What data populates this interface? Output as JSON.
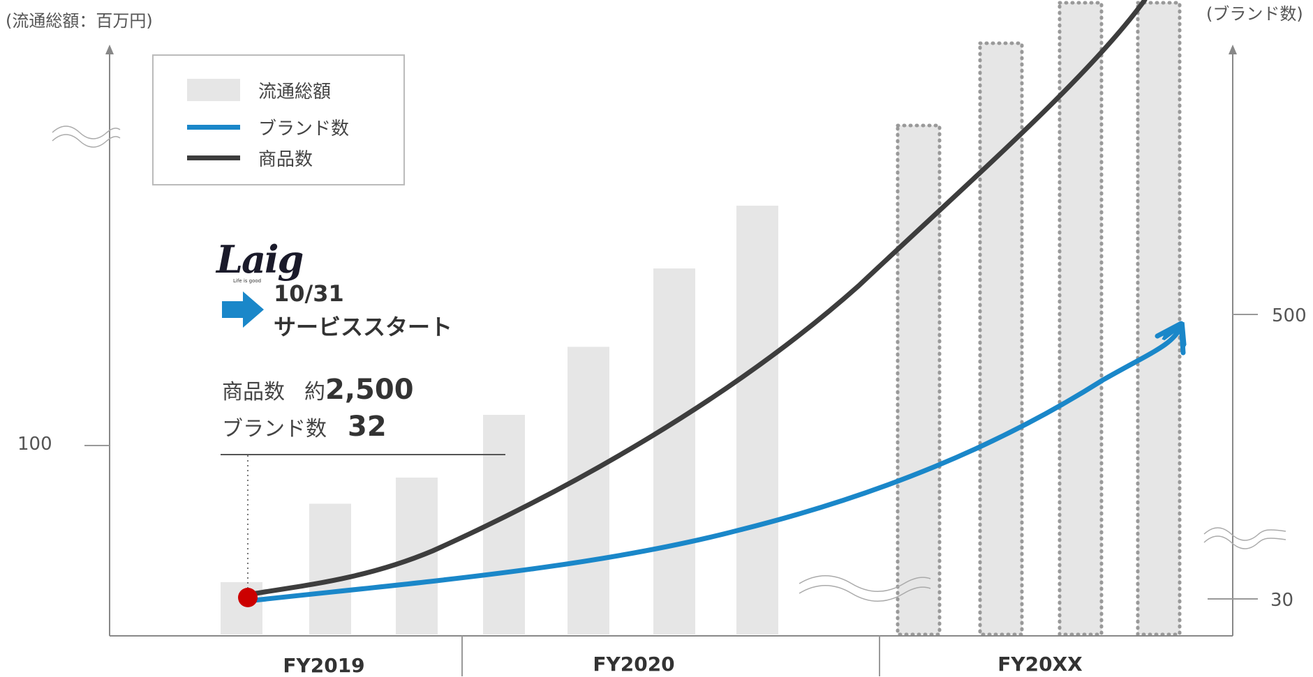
{
  "chart_data": {
    "type": "bar",
    "left_axis_label": "(流通総額：百万円)",
    "right_axis_label": "(ブランド数)",
    "left_ticks": [
      {
        "value": 100,
        "label": "100"
      }
    ],
    "right_ticks": [
      {
        "value": 500,
        "label": "500"
      },
      {
        "value": 30,
        "label": "30"
      }
    ],
    "periods": [
      "FY2019",
      "FY2020",
      "FY20XX"
    ],
    "bars": {
      "name": "流通総額",
      "color": "#e6e6e6",
      "values": [
        10,
        25,
        30,
        42,
        55,
        70,
        82
      ],
      "projected_count": 4
    },
    "lines": [
      {
        "name": "ブランド数",
        "color": "#1a87c9"
      },
      {
        "name": "商品数",
        "color": "#3d3d3d"
      }
    ],
    "legend": [
      {
        "label": "流通総額",
        "kind": "box",
        "color": "#e6e6e6"
      },
      {
        "label": "ブランド数",
        "kind": "line",
        "color": "#1a87c9"
      },
      {
        "label": "商品数",
        "kind": "line",
        "color": "#3d3d3d"
      }
    ],
    "start_point_color": "#cc0000",
    "annotation": {
      "logo": "Laig",
      "logo_sub": "Life is good",
      "date": "10/31",
      "text": "サービススタート",
      "items": [
        {
          "label": "商品数",
          "prefix": "約",
          "value": "2,500"
        },
        {
          "label": "ブランド数",
          "prefix": "",
          "value": "32"
        }
      ]
    }
  }
}
